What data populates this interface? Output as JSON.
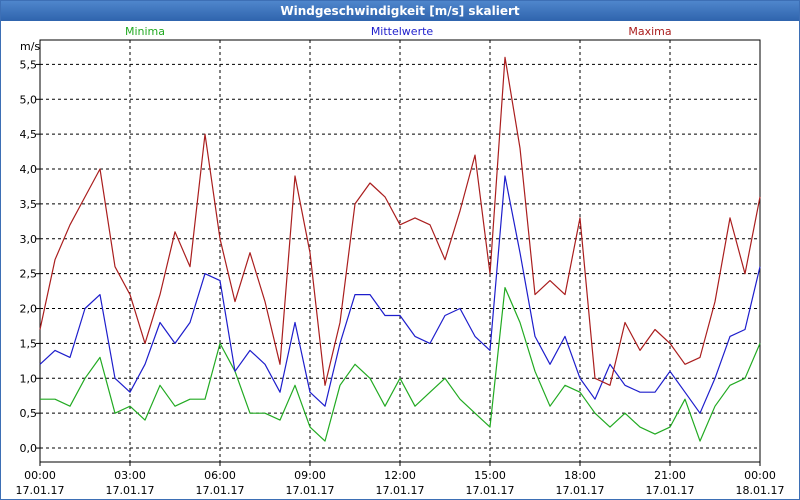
{
  "window": {
    "title": "Windgeschwindigkeit [m/s] skaliert"
  },
  "chart_data": {
    "type": "line",
    "title": "Windgeschwindigkeit [m/s] skaliert",
    "ylabel": "m/s",
    "xlabel": "",
    "ylim": [
      -0.2,
      5.85
    ],
    "xlim": [
      0,
      24
    ],
    "grid": true,
    "legend_position": "top",
    "y_ticks": [
      {
        "value": 0.0,
        "label": "0,0"
      },
      {
        "value": 0.5,
        "label": "0,5"
      },
      {
        "value": 1.0,
        "label": "1,0"
      },
      {
        "value": 1.5,
        "label": "1,5"
      },
      {
        "value": 2.0,
        "label": "2,0"
      },
      {
        "value": 2.5,
        "label": "2,5"
      },
      {
        "value": 3.0,
        "label": "3,0"
      },
      {
        "value": 3.5,
        "label": "3,5"
      },
      {
        "value": 4.0,
        "label": "4,0"
      },
      {
        "value": 4.5,
        "label": "4,5"
      },
      {
        "value": 5.0,
        "label": "5,0"
      },
      {
        "value": 5.5,
        "label": "5,5"
      }
    ],
    "x_ticks": [
      {
        "value": 0,
        "time": "00:00",
        "date": "17.01.17"
      },
      {
        "value": 3,
        "time": "03:00",
        "date": "17.01.17"
      },
      {
        "value": 6,
        "time": "06:00",
        "date": "17.01.17"
      },
      {
        "value": 9,
        "time": "09:00",
        "date": "17.01.17"
      },
      {
        "value": 12,
        "time": "12:00",
        "date": "17.01.17"
      },
      {
        "value": 15,
        "time": "15:00",
        "date": "17.01.17"
      },
      {
        "value": 18,
        "time": "18:00",
        "date": "17.01.17"
      },
      {
        "value": 21,
        "time": "21:00",
        "date": "17.01.17"
      },
      {
        "value": 24,
        "time": "00:00",
        "date": "18.01.17"
      }
    ],
    "x": [
      0,
      0.5,
      1,
      1.5,
      2,
      2.5,
      3,
      3.5,
      4,
      4.5,
      5,
      5.5,
      6,
      6.5,
      7,
      7.5,
      8,
      8.5,
      9,
      9.5,
      10,
      10.5,
      11,
      11.5,
      12,
      12.5,
      13,
      13.5,
      14,
      14.5,
      15,
      15.5,
      16,
      16.5,
      17,
      17.5,
      18,
      18.5,
      19,
      19.5,
      20,
      20.5,
      21,
      21.5,
      22,
      22.5,
      23,
      23.5,
      24
    ],
    "series": [
      {
        "name": "Minima",
        "color": "#22aa22",
        "values": [
          0.7,
          0.7,
          0.6,
          1.0,
          1.3,
          0.5,
          0.6,
          0.4,
          0.9,
          0.6,
          0.7,
          0.7,
          1.5,
          1.1,
          0.5,
          0.5,
          0.4,
          0.9,
          0.3,
          0.1,
          0.9,
          1.2,
          1.0,
          0.6,
          1.0,
          0.6,
          0.8,
          1.0,
          0.7,
          0.5,
          0.3,
          2.3,
          1.8,
          1.1,
          0.6,
          0.9,
          0.8,
          0.5,
          0.3,
          0.5,
          0.3,
          0.2,
          0.3,
          0.7,
          0.1,
          0.6,
          0.9,
          1.0,
          1.5
        ]
      },
      {
        "name": "Mittelwerte",
        "color": "#1e1ecc",
        "values": [
          1.2,
          1.4,
          1.3,
          2.0,
          2.2,
          1.0,
          0.8,
          1.2,
          1.8,
          1.5,
          1.8,
          2.5,
          2.4,
          1.1,
          1.4,
          1.2,
          0.8,
          1.8,
          0.8,
          0.6,
          1.5,
          2.2,
          2.2,
          1.9,
          1.9,
          1.6,
          1.5,
          1.9,
          2.0,
          1.6,
          1.4,
          3.9,
          2.8,
          1.6,
          1.2,
          1.6,
          1.0,
          0.7,
          1.2,
          0.9,
          0.8,
          0.8,
          1.1,
          0.8,
          0.5,
          1.0,
          1.6,
          1.7,
          2.6
        ]
      },
      {
        "name": "Maxima",
        "color": "#aa1e1e",
        "values": [
          1.7,
          2.7,
          3.2,
          3.6,
          4.0,
          2.6,
          2.2,
          1.5,
          2.2,
          3.1,
          2.6,
          4.5,
          3.0,
          2.1,
          2.8,
          2.1,
          1.2,
          3.9,
          2.8,
          0.9,
          1.8,
          3.5,
          3.8,
          3.6,
          3.2,
          3.3,
          3.2,
          2.7,
          3.4,
          4.2,
          2.5,
          5.6,
          4.3,
          2.2,
          2.4,
          2.2,
          3.3,
          1.0,
          0.9,
          1.8,
          1.4,
          1.7,
          1.5,
          1.2,
          1.3,
          2.1,
          3.3,
          2.5,
          3.6
        ]
      }
    ]
  }
}
